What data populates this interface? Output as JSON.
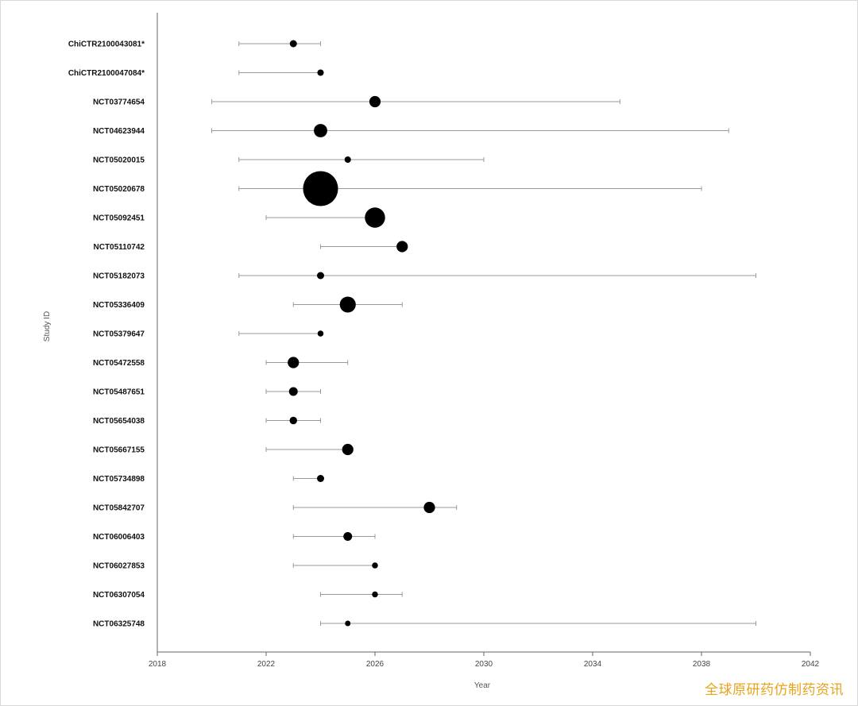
{
  "chart_data": {
    "type": "scatter",
    "xlabel": "Year",
    "ylabel": "Study ID",
    "xlim": [
      2018,
      2042
    ],
    "xticks": [
      2018,
      2022,
      2026,
      2030,
      2034,
      2038,
      2042
    ],
    "grid": false,
    "studies": [
      {
        "id": "ChiCTR2100043081*",
        "start": 2021,
        "end": 2024,
        "point": 2023,
        "size": 1
      },
      {
        "id": "ChiCTR2100047084*",
        "start": 2021,
        "end": 2024,
        "point": 2024,
        "size": 0.8
      },
      {
        "id": "NCT03774654",
        "start": 2020,
        "end": 2035,
        "point": 2026,
        "size": 2.5
      },
      {
        "id": "NCT04623944",
        "start": 2020,
        "end": 2039,
        "point": 2024,
        "size": 3.5
      },
      {
        "id": "NCT05020015",
        "start": 2021,
        "end": 2030,
        "point": 2025,
        "size": 0.8
      },
      {
        "id": "NCT05020678",
        "start": 2021,
        "end": 2038,
        "point": 2024,
        "size": 24
      },
      {
        "id": "NCT05092451",
        "start": 2022,
        "end": 2026,
        "point": 2026,
        "size": 8
      },
      {
        "id": "NCT05110742",
        "start": 2024,
        "end": 2027,
        "point": 2027,
        "size": 2.5
      },
      {
        "id": "NCT05182073",
        "start": 2021,
        "end": 2040,
        "point": 2024,
        "size": 1
      },
      {
        "id": "NCT05336409",
        "start": 2023,
        "end": 2027,
        "point": 2025,
        "size": 5
      },
      {
        "id": "NCT05379647",
        "start": 2021,
        "end": 2024,
        "point": 2024,
        "size": 0.7
      },
      {
        "id": "NCT05472558",
        "start": 2022,
        "end": 2025,
        "point": 2023,
        "size": 2.5
      },
      {
        "id": "NCT05487651",
        "start": 2022,
        "end": 2024,
        "point": 2023,
        "size": 1.5
      },
      {
        "id": "NCT05654038",
        "start": 2022,
        "end": 2024,
        "point": 2023,
        "size": 1.1
      },
      {
        "id": "NCT05667155",
        "start": 2022,
        "end": 2025,
        "point": 2025,
        "size": 2.5
      },
      {
        "id": "NCT05734898",
        "start": 2023,
        "end": 2024,
        "point": 2024,
        "size": 1
      },
      {
        "id": "NCT05842707",
        "start": 2023,
        "end": 2029,
        "point": 2028,
        "size": 2.5
      },
      {
        "id": "NCT06006403",
        "start": 2023,
        "end": 2026,
        "point": 2025,
        "size": 1.5
      },
      {
        "id": "NCT06027853",
        "start": 2023,
        "end": 2026,
        "point": 2026,
        "size": 0.7
      },
      {
        "id": "NCT06307054",
        "start": 2024,
        "end": 2027,
        "point": 2026,
        "size": 0.7
      },
      {
        "id": "NCT06325748",
        "start": 2024,
        "end": 2040,
        "point": 2025,
        "size": 0.6
      }
    ]
  },
  "watermark": "全球原研药仿制药资讯"
}
